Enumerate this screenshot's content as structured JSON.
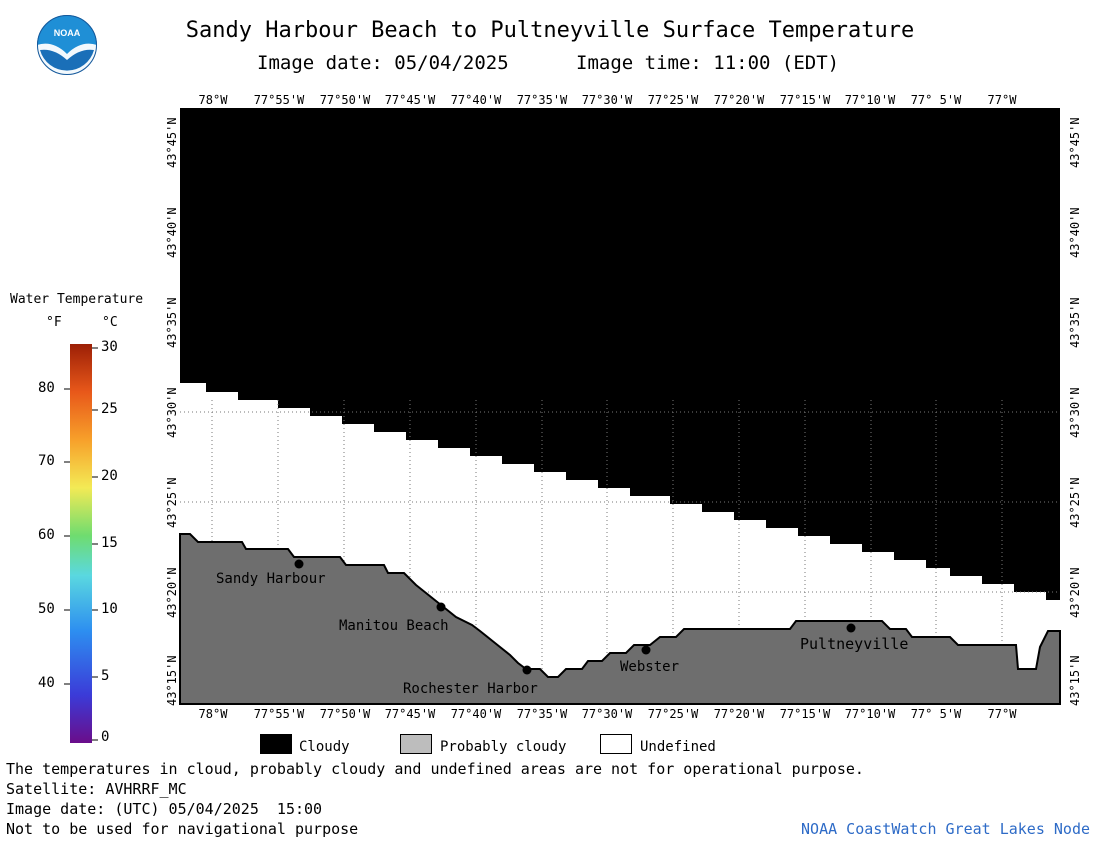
{
  "header": {
    "title": "Sandy Harbour Beach to Pultneyville Surface Temperature",
    "image_date_label": "Image date: 05/04/2025",
    "image_time_label": "Image time: 11:00 (EDT)"
  },
  "logo": {
    "text": "NOAA"
  },
  "axes": {
    "lon_labels": [
      "78°W",
      "77°55'W",
      "77°50'W",
      "77°45'W",
      "77°40'W",
      "77°35'W",
      "77°30'W",
      "77°25'W",
      "77°20'W",
      "77°15'W",
      "77°10'W",
      "77° 5'W",
      "77°W"
    ],
    "lat_labels": [
      "43°45'N",
      "43°40'N",
      "43°35'N",
      "43°30'N",
      "43°25'N",
      "43°20'N",
      "43°15'N"
    ]
  },
  "places": [
    {
      "name": "Sandy Harbour"
    },
    {
      "name": "Manitou Beach"
    },
    {
      "name": "Rochester Harbor"
    },
    {
      "name": "Webster"
    },
    {
      "name": "Pultneyville"
    }
  ],
  "colorbar": {
    "title": "Water Temperature",
    "unit_f": "°F",
    "unit_c": "°C",
    "f_ticks": [
      "80",
      "70",
      "60",
      "50",
      "40"
    ],
    "c_ticks": [
      "30",
      "25",
      "20",
      "15",
      "10",
      "5",
      "0"
    ]
  },
  "key": {
    "cloudy": "Cloudy",
    "probably_cloudy": "Probably cloudy",
    "undefined": "Undefined",
    "colors": {
      "cloudy": "#000000",
      "probably_cloudy": "#bdbdbd",
      "undefined": "#ffffff",
      "land": "#6e6e6e"
    }
  },
  "footer": {
    "note": "The temperatures in cloud, probably cloudy and undefined areas are not for operational purpose.",
    "satellite": "Satellite: AVHRRF_MC",
    "utc_date": "Image date: (UTC) 05/04/2025  15:00",
    "nav_warning": "Not to be used for navigational purpose",
    "credit": "NOAA CoastWatch Great Lakes Node"
  }
}
